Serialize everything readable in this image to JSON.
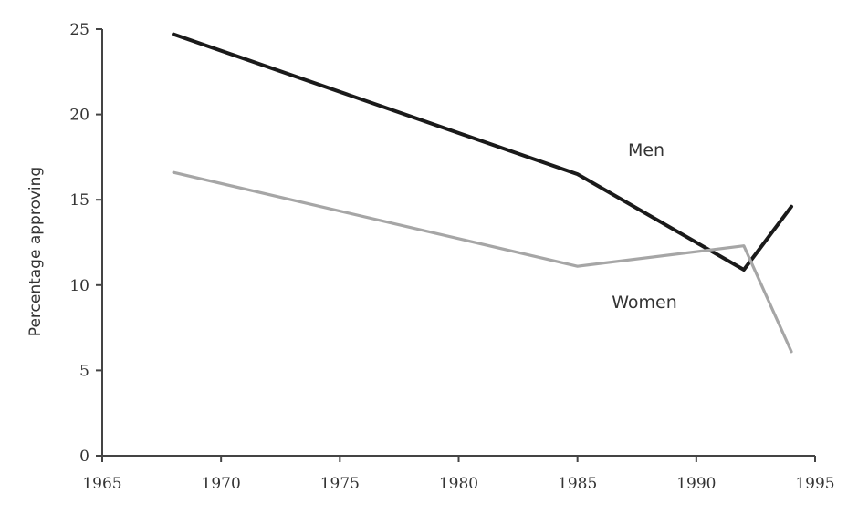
{
  "chart_data": {
    "type": "line",
    "title": "",
    "xlabel": "",
    "ylabel": "Percentage approving",
    "xlim": [
      1965,
      1995
    ],
    "ylim": [
      0,
      25
    ],
    "x_ticks": [
      1965,
      1970,
      1975,
      1980,
      1985,
      1990,
      1995
    ],
    "y_ticks": [
      0,
      5,
      10,
      15,
      20,
      25
    ],
    "grid": false,
    "series": [
      {
        "name": "Men",
        "color": "#1a1a1a",
        "points": [
          [
            1968,
            24.7
          ],
          [
            1985,
            16.5
          ],
          [
            1992,
            10.9
          ],
          [
            1994,
            14.6
          ]
        ]
      },
      {
        "name": "Women",
        "color": "#a6a6a6",
        "points": [
          [
            1968,
            16.6
          ],
          [
            1985,
            11.1
          ],
          [
            1992,
            12.3
          ],
          [
            1994,
            6.1
          ]
        ]
      }
    ]
  }
}
